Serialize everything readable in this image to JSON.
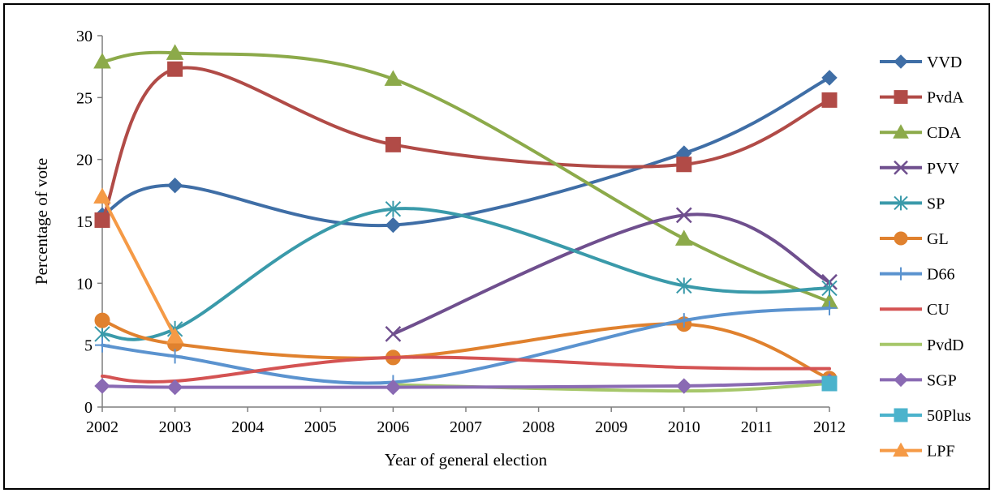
{
  "chart_data": {
    "type": "line",
    "title": "",
    "xlabel": "Year of general election",
    "ylabel": "Percentage of vote",
    "xlim": [
      2002,
      2012
    ],
    "ylim": [
      0,
      30
    ],
    "x_ticks": [
      "2002",
      "2003",
      "2004",
      "2005",
      "2006",
      "2007",
      "2008",
      "2009",
      "2010",
      "2011",
      "2012"
    ],
    "y_ticks": [
      "0",
      "5",
      "10",
      "15",
      "20",
      "25",
      "30"
    ],
    "grid": false,
    "smooth": true,
    "legend_position": "right",
    "series": [
      {
        "name": "VVD",
        "color": "#3f6ea6",
        "marker": "diamond",
        "points": [
          [
            2002,
            15.5
          ],
          [
            2003,
            17.9
          ],
          [
            2006,
            14.7
          ],
          [
            2010,
            20.5
          ],
          [
            2012,
            26.6
          ]
        ]
      },
      {
        "name": "PvdA",
        "color": "#b14b47",
        "marker": "square",
        "points": [
          [
            2002,
            15.1
          ],
          [
            2003,
            27.3
          ],
          [
            2006,
            21.2
          ],
          [
            2010,
            19.6
          ],
          [
            2012,
            24.8
          ]
        ]
      },
      {
        "name": "CDA",
        "color": "#8caa4a",
        "marker": "triangle",
        "points": [
          [
            2002,
            27.9
          ],
          [
            2003,
            28.6
          ],
          [
            2006,
            26.5
          ],
          [
            2010,
            13.6
          ],
          [
            2012,
            8.5
          ]
        ]
      },
      {
        "name": "PVV",
        "color": "#6f4f8e",
        "marker": "x",
        "points": [
          [
            2006,
            5.9
          ],
          [
            2010,
            15.5
          ],
          [
            2012,
            10.1
          ]
        ]
      },
      {
        "name": "SP",
        "color": "#3a9aaa",
        "marker": "asterisk",
        "points": [
          [
            2002,
            5.9
          ],
          [
            2003,
            6.3
          ],
          [
            2006,
            16.0
          ],
          [
            2010,
            9.8
          ],
          [
            2012,
            9.6
          ]
        ]
      },
      {
        "name": "GL",
        "color": "#e0812e",
        "marker": "circle",
        "points": [
          [
            2002,
            7.0
          ],
          [
            2003,
            5.1
          ],
          [
            2006,
            4.0
          ],
          [
            2010,
            6.7
          ],
          [
            2012,
            2.3
          ]
        ]
      },
      {
        "name": "D66",
        "color": "#5b93cf",
        "marker": "plus",
        "points": [
          [
            2002,
            5.0
          ],
          [
            2003,
            4.1
          ],
          [
            2006,
            2.0
          ],
          [
            2010,
            7.0
          ],
          [
            2012,
            8.0
          ]
        ]
      },
      {
        "name": "CU",
        "color": "#d45353",
        "marker": "none",
        "points": [
          [
            2002,
            2.5
          ],
          [
            2003,
            2.1
          ],
          [
            2006,
            4.0
          ],
          [
            2010,
            3.2
          ],
          [
            2012,
            3.1
          ]
        ]
      },
      {
        "name": "PvdD",
        "color": "#a6c76a",
        "marker": "none",
        "points": [
          [
            2006,
            1.8
          ],
          [
            2010,
            1.3
          ],
          [
            2012,
            1.9
          ]
        ]
      },
      {
        "name": "SGP",
        "color": "#8a6ab3",
        "marker": "diamond",
        "points": [
          [
            2002,
            1.7
          ],
          [
            2003,
            1.6
          ],
          [
            2006,
            1.6
          ],
          [
            2010,
            1.7
          ],
          [
            2012,
            2.1
          ]
        ]
      },
      {
        "name": "50Plus",
        "color": "#4bb3cc",
        "marker": "square",
        "points": [
          [
            2012,
            1.9
          ]
        ]
      },
      {
        "name": "LPF",
        "color": "#f59a46",
        "marker": "triangle",
        "points": [
          [
            2002,
            17.0
          ],
          [
            2003,
            5.7
          ]
        ]
      }
    ]
  }
}
